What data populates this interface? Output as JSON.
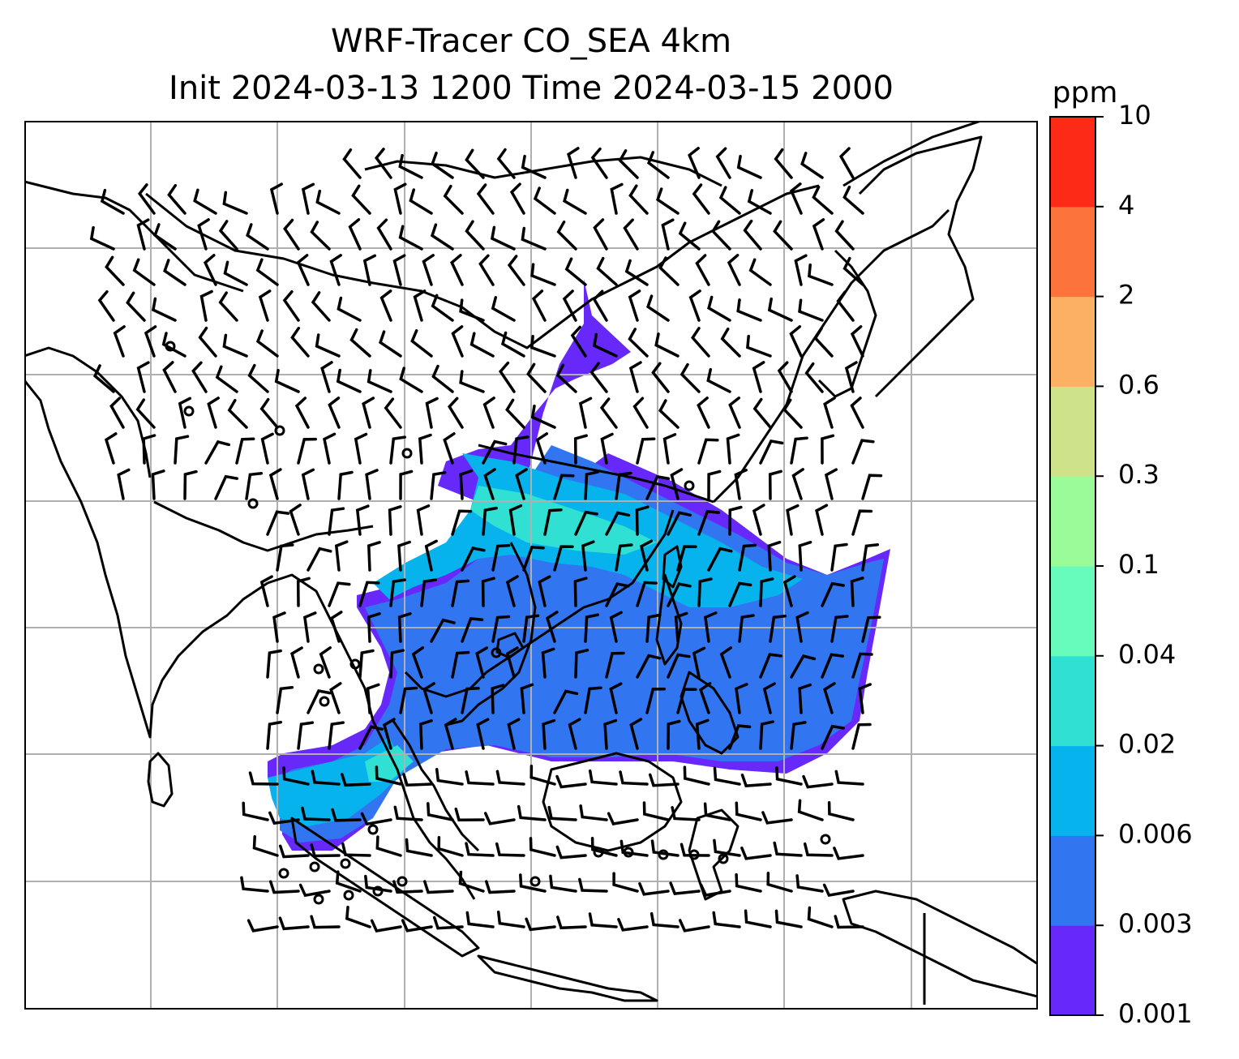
{
  "title_line1": "WRF-Tracer CO_SEA 4km",
  "title_line2": "Init 2024-03-13 1200 Time 2024-03-15 2000",
  "colorbar": {
    "unit": "ppm",
    "ticks": [
      "0.001",
      "0.003",
      "0.006",
      "0.02",
      "0.04",
      "0.1",
      "0.3",
      "0.6",
      "2",
      "4",
      "10"
    ],
    "colors": [
      "#6629fa",
      "#3176f0",
      "#07b3ec",
      "#2fe0d3",
      "#67fbbc",
      "#9afc98",
      "#cee289",
      "#fcb063",
      "#fd733c",
      "#fd2a18"
    ]
  },
  "map": {
    "plume_colors": {
      "outer": "#6629fa",
      "mid": "#3176f0",
      "inner": "#07b3ec",
      "core": "#2fe0d3"
    },
    "coastline_color": "#000000",
    "grid_color": "#b0b0b0",
    "wind_barbs": "black"
  }
}
